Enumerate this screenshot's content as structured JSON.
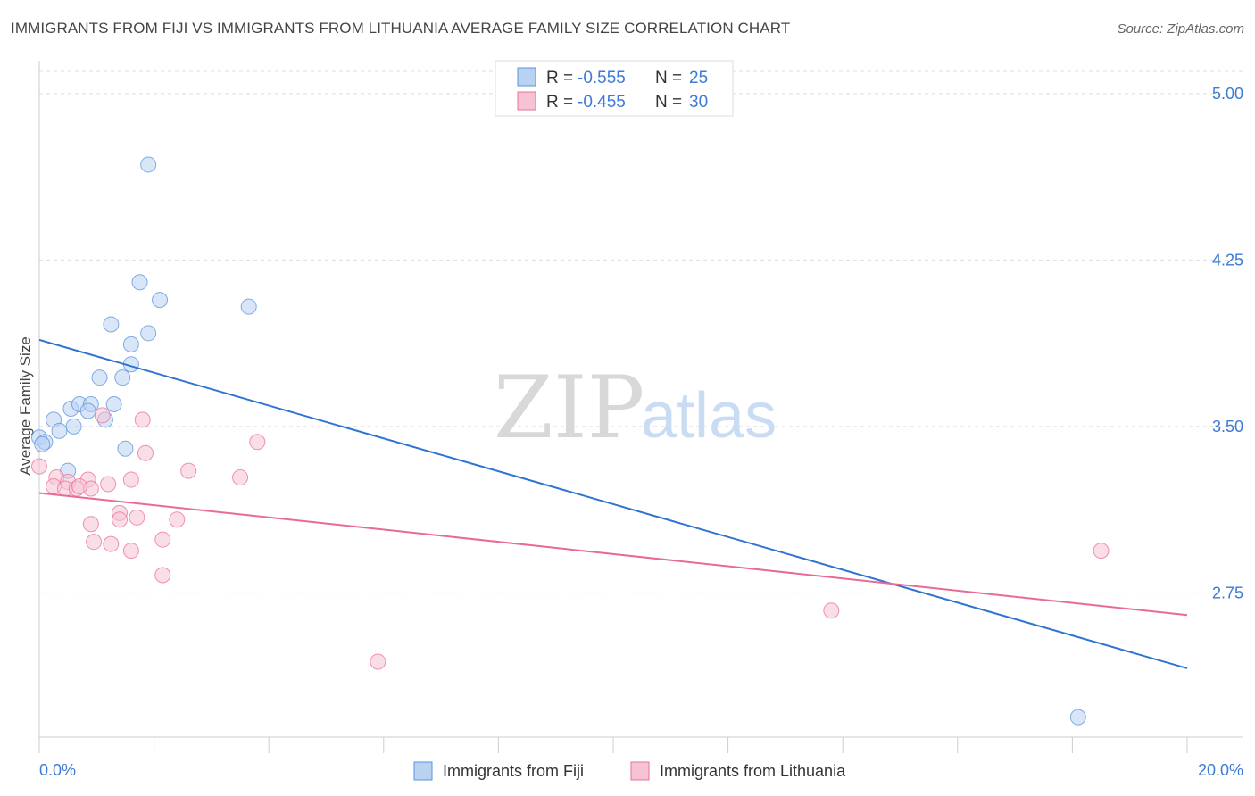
{
  "header": {
    "title": "IMMIGRANTS FROM FIJI VS IMMIGRANTS FROM LITHUANIA AVERAGE FAMILY SIZE CORRELATION CHART",
    "source": "Source: ZipAtlas.com"
  },
  "watermark": {
    "zip": "ZIP",
    "atlas": "atlas"
  },
  "legend": {
    "fiji": {
      "r_label": "R = ",
      "r_value": "-0.555",
      "n_label": "N = ",
      "n_value": "25"
    },
    "lithuania": {
      "r_label": "R = ",
      "r_value": "-0.455",
      "n_label": "N = ",
      "n_value": "30"
    }
  },
  "chart_data": {
    "type": "scatter",
    "title": "IMMIGRANTS FROM FIJI VS IMMIGRANTS FROM LITHUANIA AVERAGE FAMILY SIZE CORRELATION CHART",
    "xlabel": "",
    "ylabel": "Average Family Size",
    "xlim": [
      0,
      20
    ],
    "ylim": [
      2.1,
      5.1
    ],
    "x_tick_labels": [
      "0.0%",
      "20.0%"
    ],
    "y_ticks": [
      2.75,
      3.5,
      4.25,
      5.0
    ],
    "y_tick_labels": [
      "2.75",
      "3.50",
      "4.25",
      "5.00"
    ],
    "grid": true,
    "legend_position": "top-center",
    "colors": {
      "fiji": "#5b93dd",
      "fiji_fill": "#b8d2f2",
      "lithuania": "#e8719a",
      "lithuania_fill": "#f6c3d4"
    },
    "series": [
      {
        "name": "Immigrants from Fiji",
        "points": [
          [
            1.9,
            4.68
          ],
          [
            1.75,
            4.15
          ],
          [
            2.1,
            4.07
          ],
          [
            3.65,
            4.04
          ],
          [
            1.25,
            3.96
          ],
          [
            1.9,
            3.92
          ],
          [
            1.6,
            3.87
          ],
          [
            1.6,
            3.78
          ],
          [
            1.05,
            3.72
          ],
          [
            1.45,
            3.72
          ],
          [
            0.55,
            3.58
          ],
          [
            0.7,
            3.6
          ],
          [
            1.3,
            3.6
          ],
          [
            0.9,
            3.6
          ],
          [
            0.85,
            3.57
          ],
          [
            1.15,
            3.53
          ],
          [
            0.25,
            3.53
          ],
          [
            0.35,
            3.48
          ],
          [
            0.6,
            3.5
          ],
          [
            0.0,
            3.45
          ],
          [
            0.1,
            3.43
          ],
          [
            0.05,
            3.42
          ],
          [
            1.5,
            3.4
          ],
          [
            0.5,
            3.3
          ],
          [
            18.1,
            2.19
          ]
        ]
      },
      {
        "name": "Immigrants from Lithuania",
        "points": [
          [
            0.0,
            3.32
          ],
          [
            1.1,
            3.55
          ],
          [
            1.8,
            3.53
          ],
          [
            3.8,
            3.43
          ],
          [
            1.85,
            3.38
          ],
          [
            2.6,
            3.3
          ],
          [
            3.5,
            3.27
          ],
          [
            0.3,
            3.27
          ],
          [
            0.5,
            3.25
          ],
          [
            0.85,
            3.26
          ],
          [
            1.6,
            3.26
          ],
          [
            1.2,
            3.24
          ],
          [
            0.25,
            3.23
          ],
          [
            0.45,
            3.22
          ],
          [
            0.65,
            3.22
          ],
          [
            0.9,
            3.22
          ],
          [
            0.7,
            3.23
          ],
          [
            1.4,
            3.11
          ],
          [
            1.7,
            3.09
          ],
          [
            1.4,
            3.08
          ],
          [
            2.4,
            3.08
          ],
          [
            0.9,
            3.06
          ],
          [
            0.95,
            2.98
          ],
          [
            1.25,
            2.97
          ],
          [
            2.15,
            2.99
          ],
          [
            1.6,
            2.94
          ],
          [
            2.15,
            2.83
          ],
          [
            18.5,
            2.94
          ],
          [
            13.8,
            2.67
          ],
          [
            5.9,
            2.44
          ]
        ]
      }
    ],
    "trend_lines": [
      {
        "name": "Immigrants from Fiji",
        "x": [
          0,
          20
        ],
        "y": [
          3.89,
          2.41
        ]
      },
      {
        "name": "Immigrants from Lithuania",
        "x": [
          0,
          20
        ],
        "y": [
          3.2,
          2.65
        ]
      }
    ]
  },
  "bottom_legend": {
    "fiji_label": "Immigrants from Fiji",
    "lithuania_label": "Immigrants from Lithuania"
  }
}
